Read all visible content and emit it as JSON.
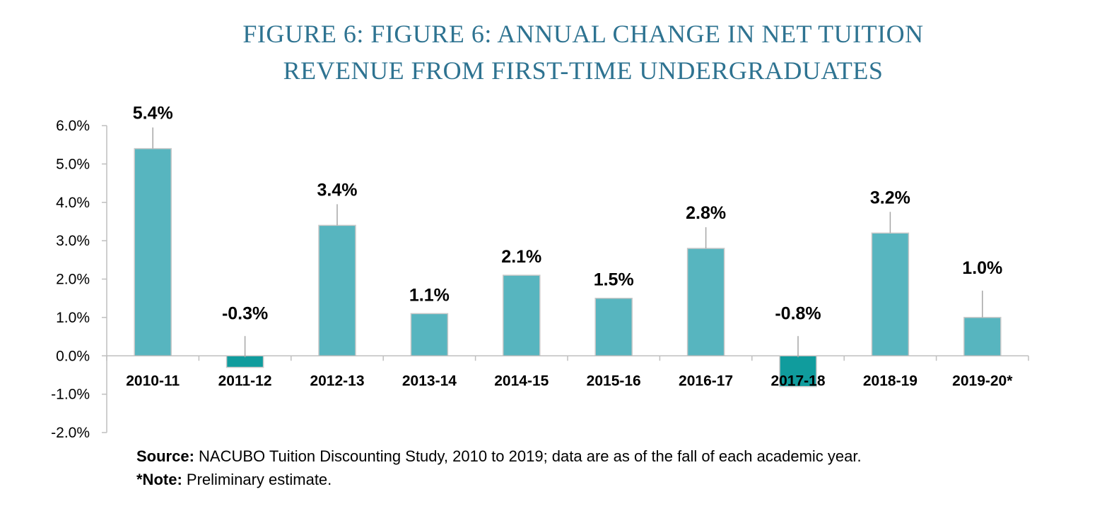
{
  "chart_data": {
    "type": "bar",
    "title_line1": "FIGURE 6: FIGURE 6: ANNUAL CHANGE IN NET TUITION",
    "title_line2": "REVENUE FROM FIRST-TIME UNDERGRADUATES",
    "categories": [
      "2010-11",
      "2011-12",
      "2012-13",
      "2013-14",
      "2014-15",
      "2015-16",
      "2016-17",
      "2017-18",
      "2018-19",
      "2019-20*"
    ],
    "values": [
      5.4,
      -0.3,
      3.4,
      1.1,
      2.1,
      1.5,
      2.8,
      -0.8,
      3.2,
      1.0
    ],
    "data_labels": [
      "5.4%",
      "-0.3%",
      "3.4%",
      "1.1%",
      "2.1%",
      "1.5%",
      "2.8%",
      "-0.8%",
      "3.2%",
      "1.0%"
    ],
    "y_ticks": [
      6.0,
      5.0,
      4.0,
      3.0,
      2.0,
      1.0,
      0.0,
      -1.0,
      -2.0
    ],
    "y_tick_labels": [
      "6.0%",
      "5.0%",
      "4.0%",
      "3.0%",
      "2.0%",
      "1.0%",
      "0.0%",
      "-1.0%",
      "-2.0%"
    ],
    "ylim": [
      -2.0,
      6.0
    ],
    "xlabel": "",
    "ylabel": "",
    "grid": false,
    "colors": {
      "positive": "#57b5bf",
      "negative": "#109c9d",
      "title": "#2e7391",
      "leader": "#a6a6a6"
    }
  },
  "notes": {
    "source_label": "Source:",
    "source_text": " NACUBO Tuition Discounting Study, 2010 to 2019; data are as of the fall of each academic year.",
    "note_label": "*Note:",
    "note_text": " Preliminary estimate."
  }
}
